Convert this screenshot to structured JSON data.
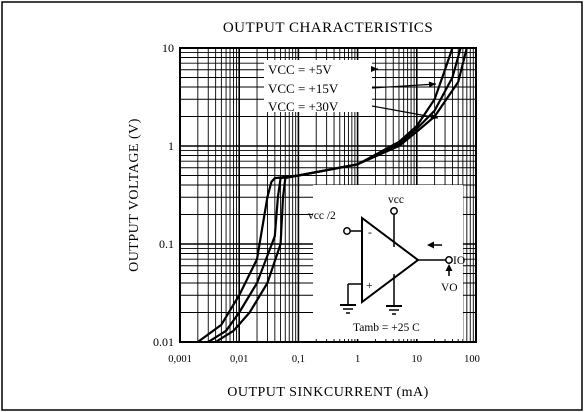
{
  "chart_data": {
    "type": "line",
    "title": "OUTPUT CHARACTERISTICS",
    "xlabel": "OUTPUT SINKCURRENT (mA)",
    "ylabel": "OUTPUT VOLTAGE (V)",
    "x_scale": "log",
    "y_scale": "log",
    "xlim": [
      0.001,
      100
    ],
    "ylim": [
      0.01,
      10
    ],
    "x_ticks": [
      "0,001",
      "0,01",
      "0,1",
      "1",
      "10",
      "100"
    ],
    "y_ticks": [
      "0.01",
      "0.1",
      "1",
      "10"
    ],
    "grid": true,
    "series": [
      {
        "name": "VCC = +5V",
        "x": [
          0.002,
          0.005,
          0.01,
          0.02,
          0.03,
          0.035,
          0.04,
          0.1,
          1,
          5,
          10,
          20,
          30,
          40
        ],
        "y": [
          0.01,
          0.015,
          0.03,
          0.07,
          0.3,
          0.43,
          0.47,
          0.5,
          0.65,
          1.1,
          1.6,
          3,
          6,
          10
        ]
      },
      {
        "name": "VCC = +15V",
        "x": [
          0.003,
          0.006,
          0.01,
          0.02,
          0.04,
          0.045,
          0.05,
          0.1,
          1,
          5,
          10,
          20,
          40,
          55
        ],
        "y": [
          0.01,
          0.013,
          0.02,
          0.04,
          0.12,
          0.3,
          0.47,
          0.5,
          0.65,
          1.05,
          1.5,
          2.3,
          5,
          10
        ]
      },
      {
        "name": "VCC = +30V",
        "x": [
          0.004,
          0.008,
          0.015,
          0.03,
          0.05,
          0.055,
          0.06,
          0.1,
          1,
          5,
          10,
          20,
          50,
          70
        ],
        "y": [
          0.01,
          0.013,
          0.02,
          0.04,
          0.1,
          0.3,
          0.47,
          0.5,
          0.65,
          1.0,
          1.4,
          2.0,
          4.5,
          10
        ]
      }
    ],
    "legend": [
      "VCC = +5V",
      "VCC = +15V",
      "VCC = +30V"
    ],
    "inset": {
      "supply_label": "vcc",
      "input_label": "vcc /2",
      "minus_sign": "-",
      "plus_sign": "+",
      "current_label": "IO",
      "voltage_label": "VO",
      "temperature_label": "Tamb  = +25  C"
    }
  }
}
